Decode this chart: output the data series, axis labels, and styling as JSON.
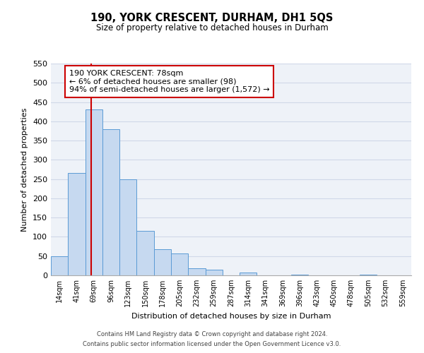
{
  "title": "190, YORK CRESCENT, DURHAM, DH1 5QS",
  "subtitle": "Size of property relative to detached houses in Durham",
  "xlabel": "Distribution of detached houses by size in Durham",
  "ylabel": "Number of detached properties",
  "bin_labels": [
    "14sqm",
    "41sqm",
    "69sqm",
    "96sqm",
    "123sqm",
    "150sqm",
    "178sqm",
    "205sqm",
    "232sqm",
    "259sqm",
    "287sqm",
    "314sqm",
    "341sqm",
    "369sqm",
    "396sqm",
    "423sqm",
    "450sqm",
    "478sqm",
    "505sqm",
    "532sqm",
    "559sqm"
  ],
  "bar_heights": [
    50,
    265,
    430,
    380,
    250,
    115,
    68,
    57,
    18,
    15,
    0,
    8,
    0,
    0,
    2,
    0,
    0,
    0,
    1,
    0,
    0
  ],
  "bar_color": "#c6d9f0",
  "bar_edge_color": "#5b9bd5",
  "grid_color": "#d0d8e8",
  "background_color": "#eef2f8",
  "vline_color": "#cc0000",
  "annotation_box_text": "190 YORK CRESCENT: 78sqm\n← 6% of detached houses are smaller (98)\n94% of semi-detached houses are larger (1,572) →",
  "annotation_box_color": "#cc0000",
  "ylim": [
    0,
    550
  ],
  "yticks": [
    0,
    50,
    100,
    150,
    200,
    250,
    300,
    350,
    400,
    450,
    500,
    550
  ],
  "footer_line1": "Contains HM Land Registry data © Crown copyright and database right 2024.",
  "footer_line2": "Contains public sector information licensed under the Open Government Licence v3.0."
}
